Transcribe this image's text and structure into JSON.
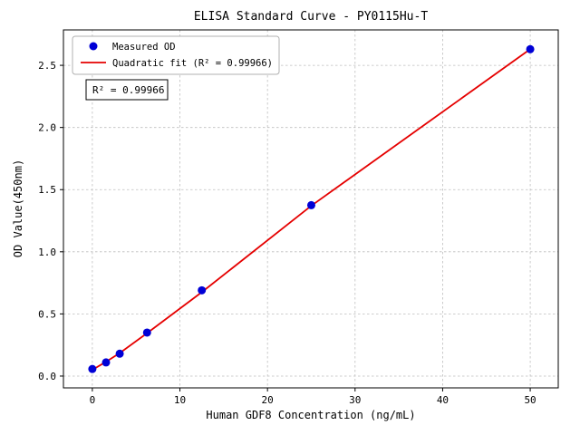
{
  "chart_data": {
    "type": "scatter",
    "title": "ELISA Standard Curve - PY0115Hu-T",
    "xlabel": "Human GDF8 Concentration (ng/mL)",
    "ylabel": "OD Value(450nm)",
    "x_ticks": [
      0,
      10,
      20,
      30,
      40,
      50
    ],
    "x_tick_labels": [
      "0",
      "10",
      "20",
      "30",
      "40",
      "50"
    ],
    "y_ticks": [
      0.0,
      0.5,
      1.0,
      1.5,
      2.0,
      2.5
    ],
    "y_tick_labels": [
      "0.0",
      "0.5",
      "1.0",
      "1.5",
      "2.0",
      "2.5"
    ],
    "xlim": [
      -3.3,
      53.2
    ],
    "ylim": [
      -0.095,
      2.785
    ],
    "grid": true,
    "grid_style": "dashed",
    "annotation": "R² = 0.99966",
    "legend": {
      "position": "upper left",
      "entries": [
        {
          "label": "Measured OD",
          "marker": "dot",
          "color": "#0000d6"
        },
        {
          "label": "Quadratic fit (R² = 0.99966)",
          "marker": "line",
          "color": "#e50000"
        }
      ]
    },
    "series": [
      {
        "name": "Measured OD",
        "type": "scatter",
        "color": "#0000d6",
        "x": [
          0,
          1.563,
          3.125,
          6.25,
          12.5,
          25,
          50
        ],
        "y": [
          0.057,
          0.11,
          0.18,
          0.35,
          0.69,
          1.375,
          2.63
        ]
      },
      {
        "name": "Quadratic fit",
        "type": "line",
        "color": "#e50000",
        "x": [
          0,
          1.563,
          3.125,
          6.25,
          12.5,
          25,
          50
        ],
        "y": [
          0.05,
          0.115,
          0.185,
          0.345,
          0.675,
          1.37,
          2.63
        ]
      }
    ]
  }
}
